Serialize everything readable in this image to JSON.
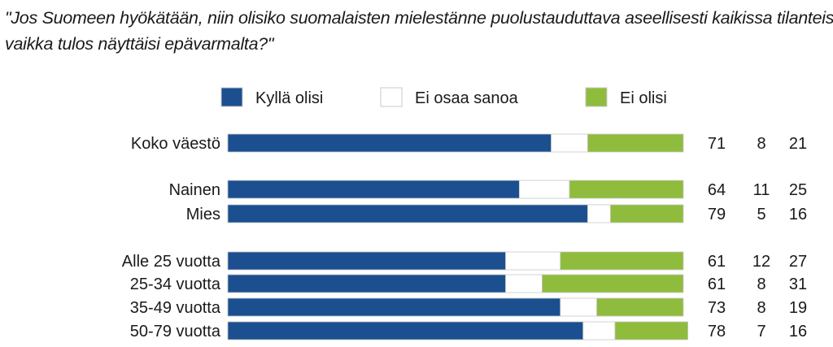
{
  "chart_data": {
    "type": "bar",
    "stacked": true,
    "orientation": "horizontal",
    "title_lines": [
      "\"Jos Suomeen hyökätään, niin olisiko suomalaisten mielestänne puolustauduttava aseellisesti kaikissa tilanteissa,",
      "vaikka tulos näyttäisi epävarmalta?\""
    ],
    "legend_position": "top",
    "categories": [
      "Koko väestö",
      "Nainen",
      "Mies",
      "Alle 25 vuotta",
      "25-34 vuotta",
      "35-49 vuotta",
      "50-79 vuotta"
    ],
    "groups": [
      [
        0
      ],
      [
        1,
        2
      ],
      [
        3,
        4,
        5,
        6
      ]
    ],
    "xlim": [
      0,
      100
    ],
    "series": [
      {
        "name": "Kyllä olisi",
        "color": "#1b4f8f",
        "values": [
          71,
          64,
          79,
          61,
          61,
          73,
          78
        ],
        "value_labels": [
          "71",
          "64",
          "79",
          "61",
          "61",
          "73",
          "78"
        ]
      },
      {
        "name": "Ei osaa sanoa",
        "color": "#ffffff",
        "values": [
          8,
          11,
          5,
          12,
          8,
          8,
          7
        ],
        "value_labels": [
          "8",
          "11",
          "5",
          "12",
          "8",
          "8",
          "7"
        ]
      },
      {
        "name": "Ei olisi",
        "color": "#8fbc3c",
        "values": [
          21,
          25,
          16,
          27,
          31,
          19,
          16
        ],
        "value_labels": [
          "21",
          "25",
          "16",
          "27",
          "31",
          "19",
          "16"
        ]
      }
    ]
  }
}
